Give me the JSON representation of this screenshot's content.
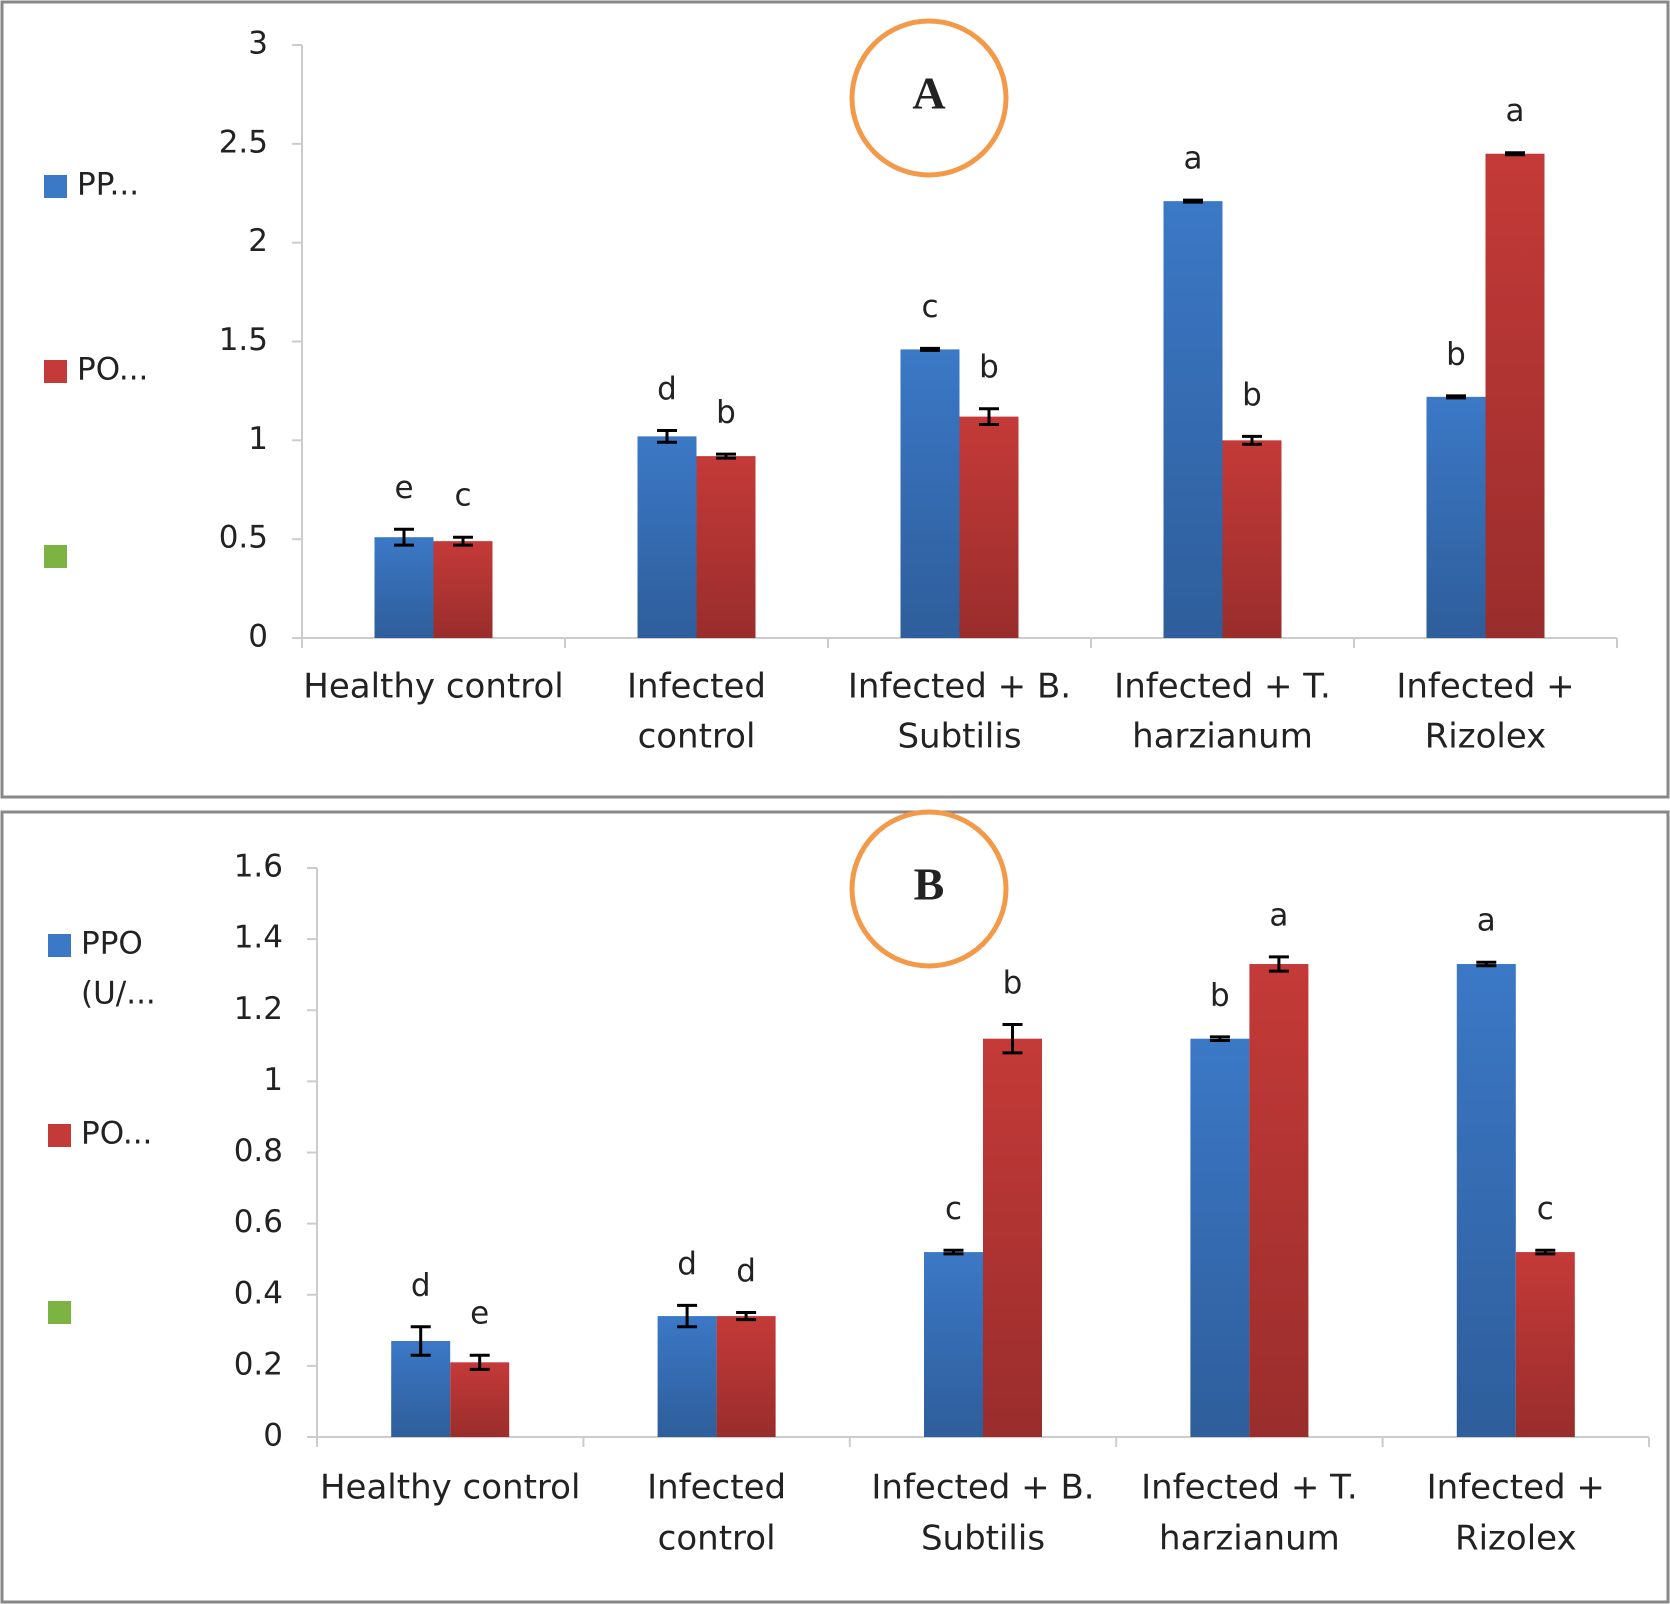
{
  "chart_data": [
    {
      "type": "bar",
      "title": "A",
      "categories": [
        [
          "Healthy control"
        ],
        [
          "Infected",
          "control"
        ],
        [
          "Infected +  B.",
          "Subtilis"
        ],
        [
          "Infected + T.",
          "harzianum"
        ],
        [
          "Infected +",
          "Rizolex"
        ]
      ],
      "series": [
        {
          "name": [
            "PP..."
          ],
          "color": "#3b78c6",
          "values": [
            0.51,
            1.02,
            1.46,
            2.21,
            1.22
          ],
          "errors": [
            0.04,
            0.03,
            0.005,
            0.005,
            0.005
          ],
          "letters": [
            "e",
            "d",
            "c",
            "a",
            "b"
          ]
        },
        {
          "name": [
            "PO..."
          ],
          "color": "#c43a38",
          "values": [
            0.49,
            0.92,
            1.12,
            1.0,
            2.45
          ],
          "errors": [
            0.02,
            0.01,
            0.04,
            0.02,
            0.005
          ],
          "letters": [
            "c",
            "b",
            "b",
            "b",
            "a"
          ]
        }
      ],
      "ylim": [
        0,
        3
      ],
      "yticks": [
        0,
        0.5,
        1,
        1.5,
        2,
        2.5,
        3
      ],
      "legend": "left"
    },
    {
      "type": "bar",
      "title": "B",
      "categories": [
        [
          "Healthy control"
        ],
        [
          "Infected",
          "control"
        ],
        [
          "Infected +  B.",
          "Subtilis"
        ],
        [
          "Infected + T.",
          "harzianum"
        ],
        [
          "Infected +",
          "Rizolex"
        ]
      ],
      "series": [
        {
          "name": [
            "PPO",
            "(U/..."
          ],
          "color": "#3b78c6",
          "values": [
            0.27,
            0.34,
            0.52,
            1.12,
            1.33
          ],
          "errors": [
            0.04,
            0.03,
            0.005,
            0.005,
            0.005
          ],
          "letters": [
            "d",
            "d",
            "c",
            "b",
            "a"
          ]
        },
        {
          "name": [
            "PO..."
          ],
          "color": "#c43a38",
          "values": [
            0.21,
            0.34,
            1.12,
            1.33,
            0.52
          ],
          "errors": [
            0.02,
            0.01,
            0.04,
            0.02,
            0.005
          ],
          "letters": [
            "e",
            "d",
            "b",
            "a",
            "c"
          ]
        }
      ],
      "ylim": [
        0,
        1.6
      ],
      "yticks": [
        0,
        0.2,
        0.4,
        0.6,
        0.8,
        1,
        1.2,
        1.4,
        1.6
      ],
      "legend": "left"
    }
  ]
}
